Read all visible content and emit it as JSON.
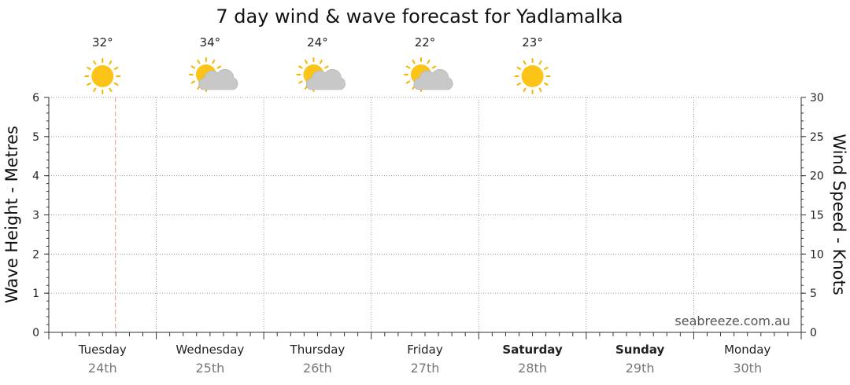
{
  "chart_data": {
    "type": "line",
    "title": "7 day wind & wave forecast for Yadlamalka",
    "ylabel_left": "Wave Height - Metres",
    "ylabel_right": "Wind Speed - Knots",
    "ylim_left": [
      0,
      6
    ],
    "ylim_right": [
      0,
      30
    ],
    "yticks_left": [
      "0",
      "1",
      "2",
      "3",
      "4",
      "5",
      "6"
    ],
    "yticks_right": [
      "0",
      "5",
      "10",
      "15",
      "20",
      "25",
      "30"
    ],
    "grid": true,
    "days": [
      {
        "day": "Tuesday",
        "date": "24th",
        "weekend": false,
        "temp": "32°",
        "icon": "sun-icon"
      },
      {
        "day": "Wednesday",
        "date": "25th",
        "weekend": false,
        "temp": "34°",
        "icon": "sun-cloud-icon"
      },
      {
        "day": "Thursday",
        "date": "26th",
        "weekend": false,
        "temp": "24°",
        "icon": "sun-cloud-icon"
      },
      {
        "day": "Friday",
        "date": "27th",
        "weekend": false,
        "temp": "22°",
        "icon": "sun-cloud-icon"
      },
      {
        "day": "Saturday",
        "date": "28th",
        "weekend": true,
        "temp": "23°",
        "icon": "sun-icon"
      },
      {
        "day": "Sunday",
        "date": "29th",
        "weekend": true,
        "temp": "",
        "icon": ""
      },
      {
        "day": "Monday",
        "date": "30th",
        "weekend": false,
        "temp": "",
        "icon": ""
      }
    ],
    "current_time_marker": {
      "day_index": 0,
      "day_fraction": 0.62
    },
    "series": [],
    "colors": {
      "grid": "#9a9a9a",
      "axis": "#333333",
      "now_marker": "#e8a898",
      "sun": "#fcc419",
      "sun_ray": "#f5b400",
      "cloud": "#c8c8c8",
      "cloud_edge": "#b8b8b8"
    }
  },
  "watermark": "seabreeze.com.au"
}
